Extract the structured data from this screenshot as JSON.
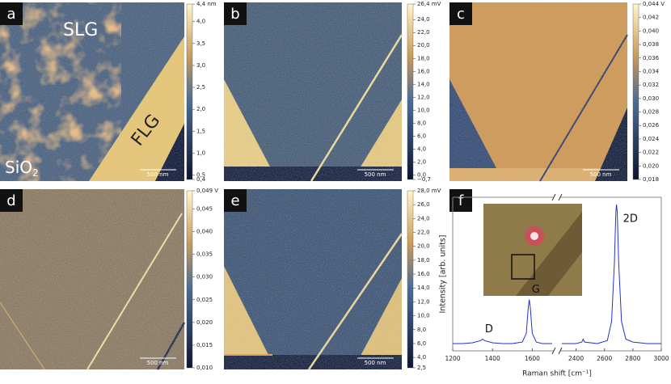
{
  "panels": [
    {
      "label": "a",
      "scale_bar": "500 nm",
      "annotations": {
        "top": "SLG",
        "strip": "FLG",
        "substrate": "SiO",
        "substrate_sub": "2"
      },
      "colorbar": {
        "lim": [
          0.4,
          4.4
        ],
        "ticks": [
          {
            "value": 4.4,
            "label": "4,4 nm"
          },
          {
            "value": 4.0,
            "label": "4,0"
          },
          {
            "value": 3.5,
            "label": "3,5"
          },
          {
            "value": 3.0,
            "label": "3,0"
          },
          {
            "value": 2.5,
            "label": "2,5"
          },
          {
            "value": 2.0,
            "label": "2,0"
          },
          {
            "value": 1.5,
            "label": "1,5"
          },
          {
            "value": 1.0,
            "label": "1,0"
          },
          {
            "value": 0.5,
            "label": "0,5"
          },
          {
            "value": 0.4,
            "label": "0,4"
          }
        ]
      }
    },
    {
      "label": "b",
      "scale_bar": "500 nm",
      "colorbar": {
        "lim": [
          -0.7,
          26.4
        ],
        "ticks": [
          {
            "value": 26.4,
            "label": "26,4 mV"
          },
          {
            "value": 24,
            "label": "24,0"
          },
          {
            "value": 22,
            "label": "22,0"
          },
          {
            "value": 20,
            "label": "20,0"
          },
          {
            "value": 18,
            "label": "18,0"
          },
          {
            "value": 16,
            "label": "16,0"
          },
          {
            "value": 14,
            "label": "14,0"
          },
          {
            "value": 12,
            "label": "12,0"
          },
          {
            "value": 10,
            "label": "10,0"
          },
          {
            "value": 8,
            "label": "8,0"
          },
          {
            "value": 6,
            "label": "6,0"
          },
          {
            "value": 4,
            "label": "4,0"
          },
          {
            "value": 2,
            "label": "2,0"
          },
          {
            "value": 0,
            "label": "0,0"
          },
          {
            "value": -0.7,
            "label": "−0,7"
          }
        ]
      }
    },
    {
      "label": "c",
      "scale_bar": "500 nm",
      "colorbar": {
        "lim": [
          0.018,
          0.044
        ],
        "ticks": [
          {
            "value": 0.044,
            "label": "0,044 V"
          },
          {
            "value": 0.042,
            "label": "0,042"
          },
          {
            "value": 0.04,
            "label": "0,040"
          },
          {
            "value": 0.038,
            "label": "0,038"
          },
          {
            "value": 0.036,
            "label": "0,036"
          },
          {
            "value": 0.034,
            "label": "0,034"
          },
          {
            "value": 0.032,
            "label": "0,032"
          },
          {
            "value": 0.03,
            "label": "0,030"
          },
          {
            "value": 0.028,
            "label": "0,028"
          },
          {
            "value": 0.026,
            "label": "0,026"
          },
          {
            "value": 0.024,
            "label": "0,024"
          },
          {
            "value": 0.022,
            "label": "0,022"
          },
          {
            "value": 0.02,
            "label": "0,020"
          },
          {
            "value": 0.018,
            "label": "0,018"
          }
        ]
      }
    },
    {
      "label": "d",
      "scale_bar": "500 nm",
      "colorbar": {
        "lim": [
          0.01,
          0.049
        ],
        "ticks": [
          {
            "value": 0.049,
            "label": "0,049 V"
          },
          {
            "value": 0.045,
            "label": "0,045"
          },
          {
            "value": 0.04,
            "label": "0,040"
          },
          {
            "value": 0.035,
            "label": "0,035"
          },
          {
            "value": 0.03,
            "label": "0,030"
          },
          {
            "value": 0.025,
            "label": "0,025"
          },
          {
            "value": 0.02,
            "label": "0,020"
          },
          {
            "value": 0.015,
            "label": "0,015"
          },
          {
            "value": 0.01,
            "label": "0,010"
          }
        ]
      }
    },
    {
      "label": "e",
      "scale_bar": "500 nm",
      "colorbar": {
        "lim": [
          2.5,
          28.0
        ],
        "ticks": [
          {
            "value": 28.0,
            "label": "28,0 mV"
          },
          {
            "value": 26,
            "label": "26,0"
          },
          {
            "value": 24,
            "label": "24,0"
          },
          {
            "value": 22,
            "label": "22,0"
          },
          {
            "value": 20,
            "label": "20,0"
          },
          {
            "value": 18,
            "label": "18,0"
          },
          {
            "value": 16,
            "label": "16,0"
          },
          {
            "value": 14,
            "label": "14,0"
          },
          {
            "value": 12,
            "label": "12,0"
          },
          {
            "value": 10,
            "label": "10,0"
          },
          {
            "value": 8,
            "label": "8,0"
          },
          {
            "value": 6,
            "label": "6,0"
          },
          {
            "value": 4,
            "label": "4,0"
          },
          {
            "value": 2.5,
            "label": "2,5"
          }
        ]
      }
    }
  ],
  "chart_data": {
    "type": "line",
    "panel_label": "f",
    "x_label": "Raman shift [cm⁻¹]",
    "y_label": "Intensity [arb. units]",
    "peak_labels": [
      "D",
      "G",
      "2D"
    ],
    "x": [
      1200,
      1250,
      1300,
      1340,
      1350,
      1360,
      1400,
      1450,
      1500,
      1550,
      1570,
      1580,
      1585,
      1590,
      1600,
      1620,
      1650,
      1700,
      2000,
      2300,
      2400,
      2440,
      2450,
      2460,
      2550,
      2620,
      2650,
      2670,
      2680,
      2685,
      2690,
      2700,
      2720,
      2750,
      2800,
      2900,
      3000
    ],
    "values": [
      0.05,
      0.05,
      0.055,
      0.07,
      0.08,
      0.07,
      0.055,
      0.05,
      0.05,
      0.06,
      0.12,
      0.3,
      0.35,
      0.3,
      0.12,
      0.06,
      0.05,
      0.05,
      null,
      0.05,
      0.05,
      0.06,
      0.08,
      0.06,
      0.05,
      0.07,
      0.2,
      0.6,
      0.95,
      1.0,
      0.95,
      0.6,
      0.2,
      0.08,
      0.06,
      0.05,
      0.05
    ],
    "color": "#2233cc",
    "xlim_segments": [
      [
        1200,
        1700
      ],
      [
        2300,
        3000
      ]
    ],
    "xticks": [
      1200,
      1400,
      1600,
      2400,
      2600,
      2800,
      3000
    ],
    "ylim": [
      0,
      1.05
    ]
  }
}
